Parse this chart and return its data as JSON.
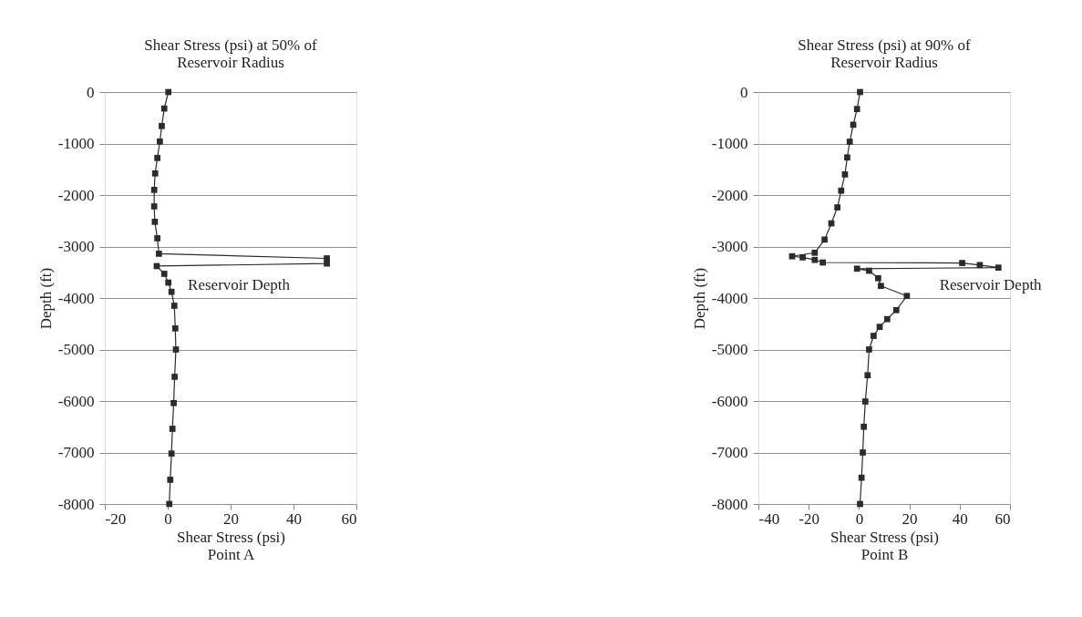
{
  "chart_data": [
    {
      "type": "line",
      "title": "Shear Stress (psi) at 50% of\nReservoir Radius",
      "xlabel": "Shear Stress (psi)\nPoint A",
      "ylabel": "Depth (ft)",
      "marker": "square",
      "line_style": "solid",
      "grid": "y",
      "xlim": [
        -20,
        60
      ],
      "xticks": [
        -20,
        0,
        20,
        40,
        60
      ],
      "ylim": [
        -8000,
        0
      ],
      "yticks": [
        0,
        -1000,
        -2000,
        -3000,
        -4000,
        -5000,
        -6000,
        -7000,
        -8000
      ],
      "series": [
        {
          "color": "#2b2b2b",
          "x": [
            0.2,
            -1.1,
            -1.9,
            -2.5,
            -3.3,
            -4.0,
            -4.3,
            -4.3,
            -4.1,
            -3.3,
            -2.8,
            50.6,
            50.6,
            -3.5,
            -1.1,
            0.2,
            1.2,
            2.1,
            2.4,
            2.6,
            2.2,
            1.9,
            1.5,
            1.2,
            0.8,
            0.5
          ],
          "values": [
            0,
            -320,
            -660,
            -960,
            -1280,
            -1580,
            -1900,
            -2220,
            -2520,
            -2840,
            -3140,
            -3230,
            -3330,
            -3380,
            -3530,
            -3700,
            -3880,
            -4150,
            -4590,
            -5000,
            -5530,
            -6040,
            -6540,
            -7020,
            -7530,
            -8000
          ]
        }
      ],
      "annotations": [
        "Reservoir Depth"
      ]
    },
    {
      "type": "line",
      "title": "Shear Stress (psi) at 90% of\nReservoir Radius",
      "xlabel": "Shear Stress (psi)\nPoint B",
      "ylabel": "Depth (ft)",
      "marker": "square",
      "line_style": "solid",
      "grid": "y",
      "xlim": [
        -40,
        60
      ],
      "xticks": [
        -40,
        -20,
        0,
        20,
        40,
        60
      ],
      "ylim": [
        -8000,
        0
      ],
      "yticks": [
        0,
        -1000,
        -2000,
        -3000,
        -4000,
        -5000,
        -6000,
        -7000,
        -8000
      ],
      "series": [
        {
          "color": "#2b2b2b",
          "x": [
            0.4,
            -0.8,
            -2.3,
            -3.7,
            -4.7,
            -5.6,
            -7.1,
            -8.6,
            -11.0,
            -13.7,
            -17.6,
            -26.6,
            -22.4,
            -17.6,
            -14.4,
            41,
            48,
            55.4,
            -0.8,
            4,
            7.6,
            8.7,
            19,
            14.8,
            11.2,
            8.2,
            5.8,
            4,
            3.4,
            2.5,
            1.9,
            1.5,
            1.0,
            0.4
          ],
          "values": [
            0,
            -330,
            -635,
            -965,
            -1270,
            -1600,
            -1915,
            -2240,
            -2550,
            -2865,
            -3120,
            -3190,
            -3210,
            -3260,
            -3310,
            -3320,
            -3360,
            -3410,
            -3430,
            -3470,
            -3615,
            -3765,
            -3960,
            -4235,
            -4410,
            -4560,
            -4735,
            -5000,
            -5500,
            -6010,
            -6500,
            -7000,
            -7490,
            -8000
          ]
        }
      ],
      "annotations": [
        "Reservoir Depth"
      ]
    }
  ]
}
